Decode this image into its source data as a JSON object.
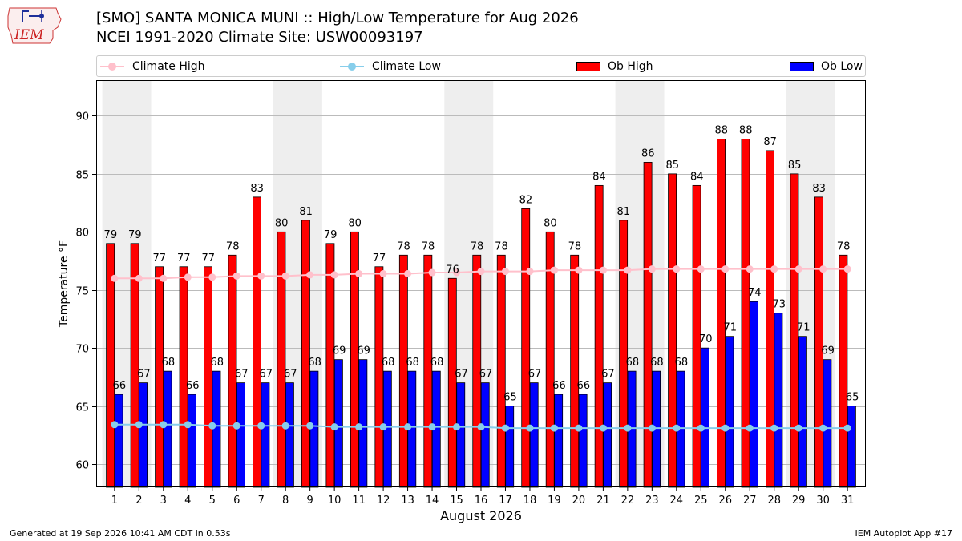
{
  "header": {
    "logo_text": "IEM",
    "title_line1": "[SMO] SANTA MONICA MUNI :: High/Low Temperature for Aug 2026",
    "title_line2": "NCEI 1991-2020 Climate Site: USW00093197"
  },
  "legend": {
    "climate_high": "Climate High",
    "climate_low": "Climate Low",
    "ob_high": "Ob High",
    "ob_low": "Ob Low"
  },
  "footer": {
    "generated": "Generated at 19 Sep 2026 10:41 AM CDT in 0.53s",
    "app": "IEM Autoplot App #17"
  },
  "colors": {
    "ob_high": "#ff0000",
    "ob_low": "#0000ff",
    "climate_high": "#ffc0cb",
    "climate_low": "#87ceeb",
    "weekend_shade": "#eeeeee",
    "grid": "#bbbbbb"
  },
  "chart_data": {
    "type": "bar",
    "xlabel": "August 2026",
    "ylabel": "Temperature °F",
    "ylim": [
      58,
      93
    ],
    "yticks": [
      60,
      65,
      70,
      75,
      80,
      85,
      90
    ],
    "grid": true,
    "legend_position": "top",
    "categories": [
      "1",
      "2",
      "3",
      "4",
      "5",
      "6",
      "7",
      "8",
      "9",
      "10",
      "11",
      "12",
      "13",
      "14",
      "15",
      "16",
      "17",
      "18",
      "19",
      "20",
      "21",
      "22",
      "23",
      "24",
      "25",
      "26",
      "27",
      "28",
      "29",
      "30",
      "31"
    ],
    "shaded_day_pairs": [
      [
        1,
        2
      ],
      [
        8,
        9
      ],
      [
        15,
        16
      ],
      [
        22,
        23
      ],
      [
        29,
        30
      ]
    ],
    "series": [
      {
        "name": "Ob High",
        "kind": "bar",
        "values": [
          79,
          79,
          77,
          77,
          77,
          78,
          83,
          80,
          81,
          79,
          80,
          77,
          78,
          78,
          76,
          78,
          78,
          82,
          80,
          78,
          84,
          81,
          86,
          85,
          84,
          88,
          88,
          87,
          85,
          83,
          78
        ]
      },
      {
        "name": "Ob Low",
        "kind": "bar",
        "values": [
          66,
          67,
          68,
          66,
          68,
          67,
          67,
          67,
          68,
          69,
          69,
          68,
          68,
          68,
          67,
          67,
          65,
          67,
          66,
          66,
          67,
          68,
          68,
          68,
          70,
          71,
          74,
          73,
          71,
          69,
          65
        ]
      },
      {
        "name": "Climate High",
        "kind": "line",
        "values": [
          76.0,
          76.0,
          76.0,
          76.1,
          76.1,
          76.2,
          76.2,
          76.2,
          76.3,
          76.3,
          76.4,
          76.4,
          76.4,
          76.5,
          76.5,
          76.6,
          76.6,
          76.6,
          76.7,
          76.7,
          76.7,
          76.7,
          76.8,
          76.8,
          76.8,
          76.8,
          76.8,
          76.8,
          76.8,
          76.8,
          76.8
        ]
      },
      {
        "name": "Climate Low",
        "kind": "line",
        "values": [
          63.4,
          63.4,
          63.4,
          63.4,
          63.3,
          63.3,
          63.3,
          63.3,
          63.3,
          63.2,
          63.2,
          63.2,
          63.2,
          63.2,
          63.2,
          63.2,
          63.1,
          63.1,
          63.1,
          63.1,
          63.1,
          63.1,
          63.1,
          63.1,
          63.1,
          63.1,
          63.1,
          63.1,
          63.1,
          63.1,
          63.1
        ]
      }
    ]
  }
}
